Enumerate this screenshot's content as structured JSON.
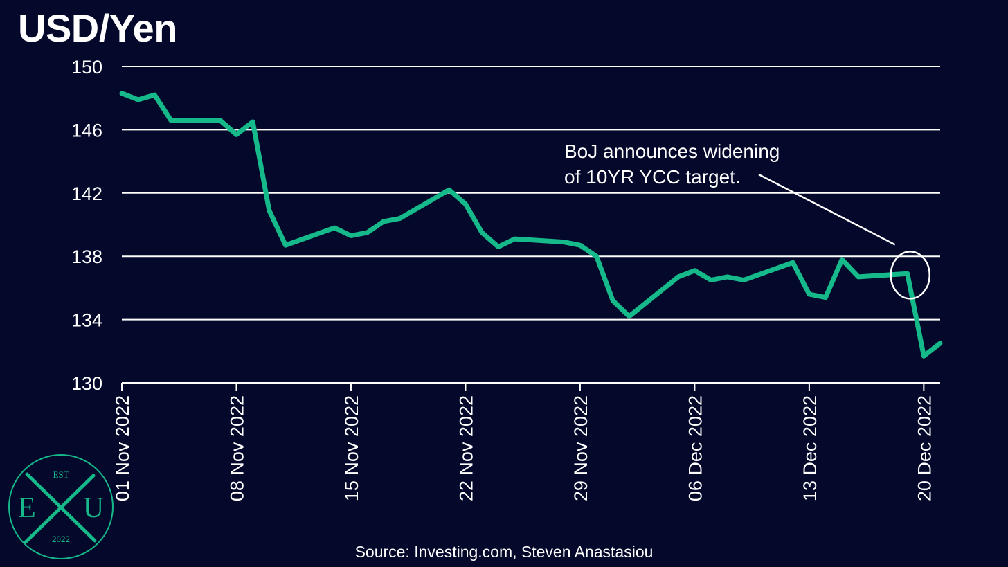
{
  "chart_data": {
    "type": "line",
    "title": "USD/Yen",
    "xlabel": "",
    "ylabel": "",
    "ylim": [
      130,
      150
    ],
    "yticks": [
      130,
      134,
      138,
      142,
      146,
      150
    ],
    "xlim": [
      "2022-11-01",
      "2022-12-21"
    ],
    "xtick_labels": [
      {
        "date": "2022-11-01",
        "label": "01 Nov 2022"
      },
      {
        "date": "2022-11-08",
        "label": "08 Nov 2022"
      },
      {
        "date": "2022-11-15",
        "label": "15 Nov 2022"
      },
      {
        "date": "2022-11-22",
        "label": "22 Nov 2022"
      },
      {
        "date": "2022-11-29",
        "label": "29 Nov 2022"
      },
      {
        "date": "2022-12-06",
        "label": "06 Dec 2022"
      },
      {
        "date": "2022-12-13",
        "label": "13 Dec 2022"
      },
      {
        "date": "2022-12-20",
        "label": "20 Dec 2022"
      }
    ],
    "grid": "horizontal",
    "series": [
      {
        "color": "#16b98a",
        "points": [
          [
            "2022-11-01",
            148.3
          ],
          [
            "2022-11-02",
            147.9
          ],
          [
            "2022-11-03",
            148.2
          ],
          [
            "2022-11-04",
            146.6
          ],
          [
            "2022-11-07",
            146.6
          ],
          [
            "2022-11-08",
            145.7
          ],
          [
            "2022-11-09",
            146.5
          ],
          [
            "2022-11-10",
            140.9
          ],
          [
            "2022-11-11",
            138.7
          ],
          [
            "2022-11-14",
            139.8
          ],
          [
            "2022-11-15",
            139.3
          ],
          [
            "2022-11-16",
            139.5
          ],
          [
            "2022-11-17",
            140.2
          ],
          [
            "2022-11-18",
            140.4
          ],
          [
            "2022-11-21",
            142.2
          ],
          [
            "2022-11-22",
            141.3
          ],
          [
            "2022-11-23",
            139.5
          ],
          [
            "2022-11-24",
            138.6
          ],
          [
            "2022-11-25",
            139.1
          ],
          [
            "2022-11-28",
            138.9
          ],
          [
            "2022-11-29",
            138.7
          ],
          [
            "2022-11-30",
            138.0
          ],
          [
            "2022-12-01",
            135.2
          ],
          [
            "2022-12-02",
            134.2
          ],
          [
            "2022-12-05",
            136.7
          ],
          [
            "2022-12-06",
            137.1
          ],
          [
            "2022-12-07",
            136.5
          ],
          [
            "2022-12-08",
            136.7
          ],
          [
            "2022-12-09",
            136.5
          ],
          [
            "2022-12-12",
            137.6
          ],
          [
            "2022-12-13",
            135.6
          ],
          [
            "2022-12-14",
            135.4
          ],
          [
            "2022-12-15",
            137.8
          ],
          [
            "2022-12-16",
            136.7
          ],
          [
            "2022-12-19",
            136.9
          ],
          [
            "2022-12-20",
            131.7
          ],
          [
            "2022-12-21",
            132.5
          ]
        ]
      }
    ],
    "annotation": {
      "text_lines": [
        "BoJ announces widening",
        "of 10YR YCC target."
      ],
      "target_date": "2022-12-19",
      "target_value": 136.9
    },
    "source": "Source: Investing.com, Steven Anastasiou"
  },
  "logo": {
    "top": "EST",
    "left": "E",
    "center": "X",
    "right": "U",
    "bottom": "2022",
    "color": "#16b98a"
  }
}
